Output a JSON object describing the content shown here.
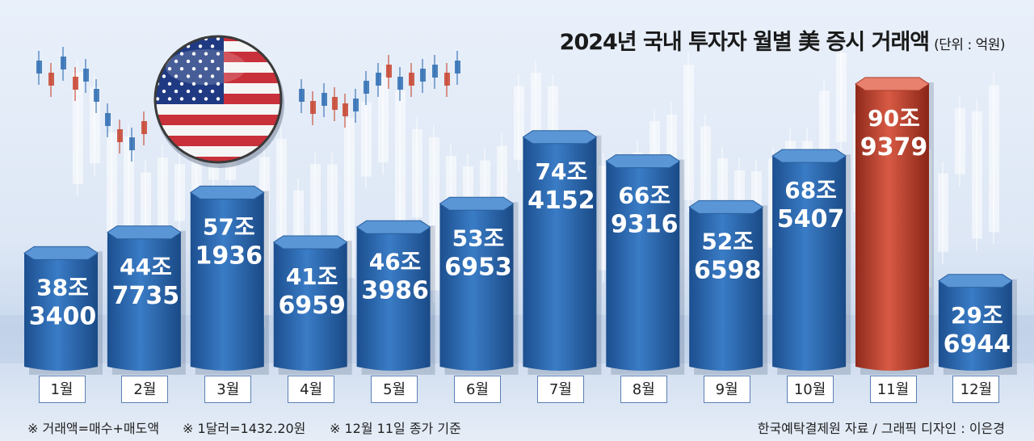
{
  "title": "2024년 국내 투자자 월별 美 증시 거래액",
  "unit": "(단위 : 억원)",
  "notes": [
    "※ 거래액=매수+매도액",
    "※ 1달러=1432.20원",
    "※ 12월 11일 종가 기준"
  ],
  "credit": "한국예탁결제원 자료 / 그래픽 디자인 : 이은경",
  "colors": {
    "bar": "#2f6db3",
    "highlight": "#c8442f"
  },
  "chart_data": {
    "type": "bar",
    "categories": [
      "1월",
      "2월",
      "3월",
      "4월",
      "5월",
      "6월",
      "7월",
      "8월",
      "9월",
      "10월",
      "11월",
      "12월"
    ],
    "values": [
      383400,
      447735,
      571936,
      416959,
      463986,
      536953,
      744152,
      669316,
      526598,
      685407,
      909379,
      296944
    ],
    "labels_top": [
      "38조",
      "44조",
      "57조",
      "41조",
      "46조",
      "53조",
      "74조",
      "66조",
      "52조",
      "68조",
      "90조",
      "29조"
    ],
    "labels_bottom": [
      "3400",
      "7735",
      "1936",
      "6959",
      "3986",
      "6953",
      "4152",
      "9316",
      "6598",
      "5407",
      "9379",
      "6944"
    ],
    "highlight_index": 10
  }
}
